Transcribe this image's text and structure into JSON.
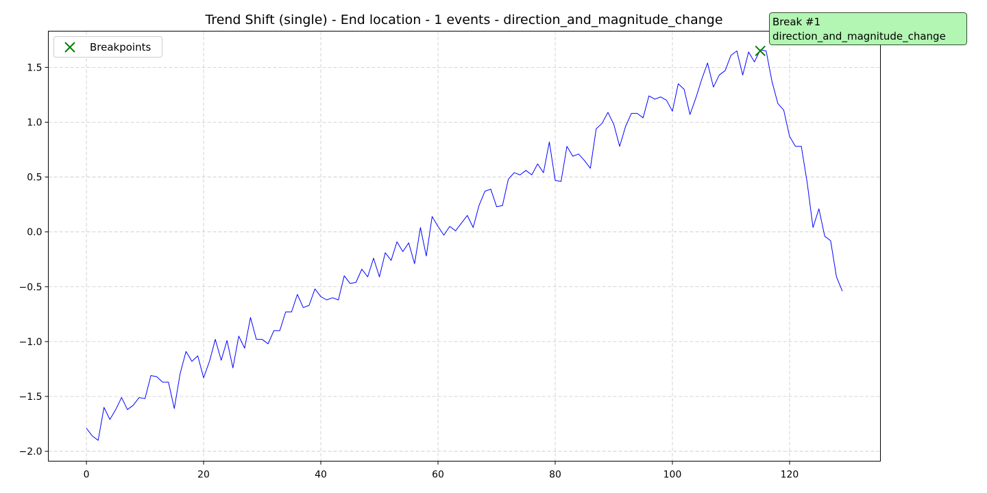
{
  "chart_data": {
    "type": "line",
    "title": "Trend Shift (single) - End location - 1 events - direction_and_magnitude_change",
    "xlabel": "",
    "ylabel": "",
    "xlim": [
      -6.5,
      135.5
    ],
    "ylim": [
      -2.09,
      1.83
    ],
    "xticks": [
      0,
      20,
      40,
      60,
      80,
      100,
      120
    ],
    "yticks": [
      -2.0,
      -1.5,
      -1.0,
      -0.5,
      0.0,
      0.5,
      1.0,
      1.5
    ],
    "ytick_labels": [
      "−2.0",
      "−1.5",
      "−1.0",
      "−0.5",
      "0.0",
      "0.5",
      "1.0",
      "1.5"
    ],
    "grid": true,
    "legend": {
      "position": "top-left",
      "entries": [
        "Breakpoints"
      ]
    },
    "series": [
      {
        "color": "#0000ff",
        "x_start": 0,
        "values": [
          -1.79,
          -1.86,
          -1.9,
          -1.6,
          -1.71,
          -1.62,
          -1.51,
          -1.62,
          -1.58,
          -1.51,
          -1.52,
          -1.31,
          -1.32,
          -1.37,
          -1.37,
          -1.61,
          -1.29,
          -1.09,
          -1.18,
          -1.13,
          -1.33,
          -1.18,
          -0.98,
          -1.17,
          -0.99,
          -1.24,
          -0.95,
          -1.06,
          -0.78,
          -0.98,
          -0.98,
          -1.02,
          -0.9,
          -0.9,
          -0.73,
          -0.73,
          -0.57,
          -0.69,
          -0.67,
          -0.52,
          -0.59,
          -0.62,
          -0.6,
          -0.62,
          -0.4,
          -0.47,
          -0.46,
          -0.34,
          -0.41,
          -0.24,
          -0.41,
          -0.19,
          -0.26,
          -0.09,
          -0.18,
          -0.1,
          -0.29,
          0.04,
          -0.22,
          0.14,
          0.05,
          -0.03,
          0.05,
          0.01,
          0.08,
          0.15,
          0.04,
          0.24,
          0.37,
          0.39,
          0.23,
          0.24,
          0.48,
          0.54,
          0.52,
          0.56,
          0.52,
          0.62,
          0.54,
          0.82,
          0.47,
          0.46,
          0.78,
          0.69,
          0.71,
          0.65,
          0.58,
          0.94,
          0.99,
          1.09,
          0.98,
          0.78,
          0.96,
          1.08,
          1.08,
          1.04,
          1.24,
          1.21,
          1.23,
          1.2,
          1.1,
          1.35,
          1.3,
          1.07,
          1.22,
          1.39,
          1.54,
          1.32,
          1.43,
          1.47,
          1.61,
          1.65,
          1.43,
          1.64,
          1.55,
          1.66,
          1.65,
          1.37,
          1.17,
          1.11,
          0.87,
          0.78,
          0.78,
          0.45,
          0.04,
          0.21,
          -0.04,
          -0.08,
          -0.41,
          -0.54
        ]
      }
    ],
    "breakpoints": {
      "label": "Breakpoints",
      "color": "#008000",
      "marker": "x",
      "points": [
        {
          "x": 115,
          "y": 1.65
        }
      ]
    },
    "annotations": [
      {
        "line1": "Break #1",
        "line2": "direction_and_magnitude_change",
        "bg": "#b3f5b3",
        "border": "#2f4f2f"
      }
    ]
  }
}
